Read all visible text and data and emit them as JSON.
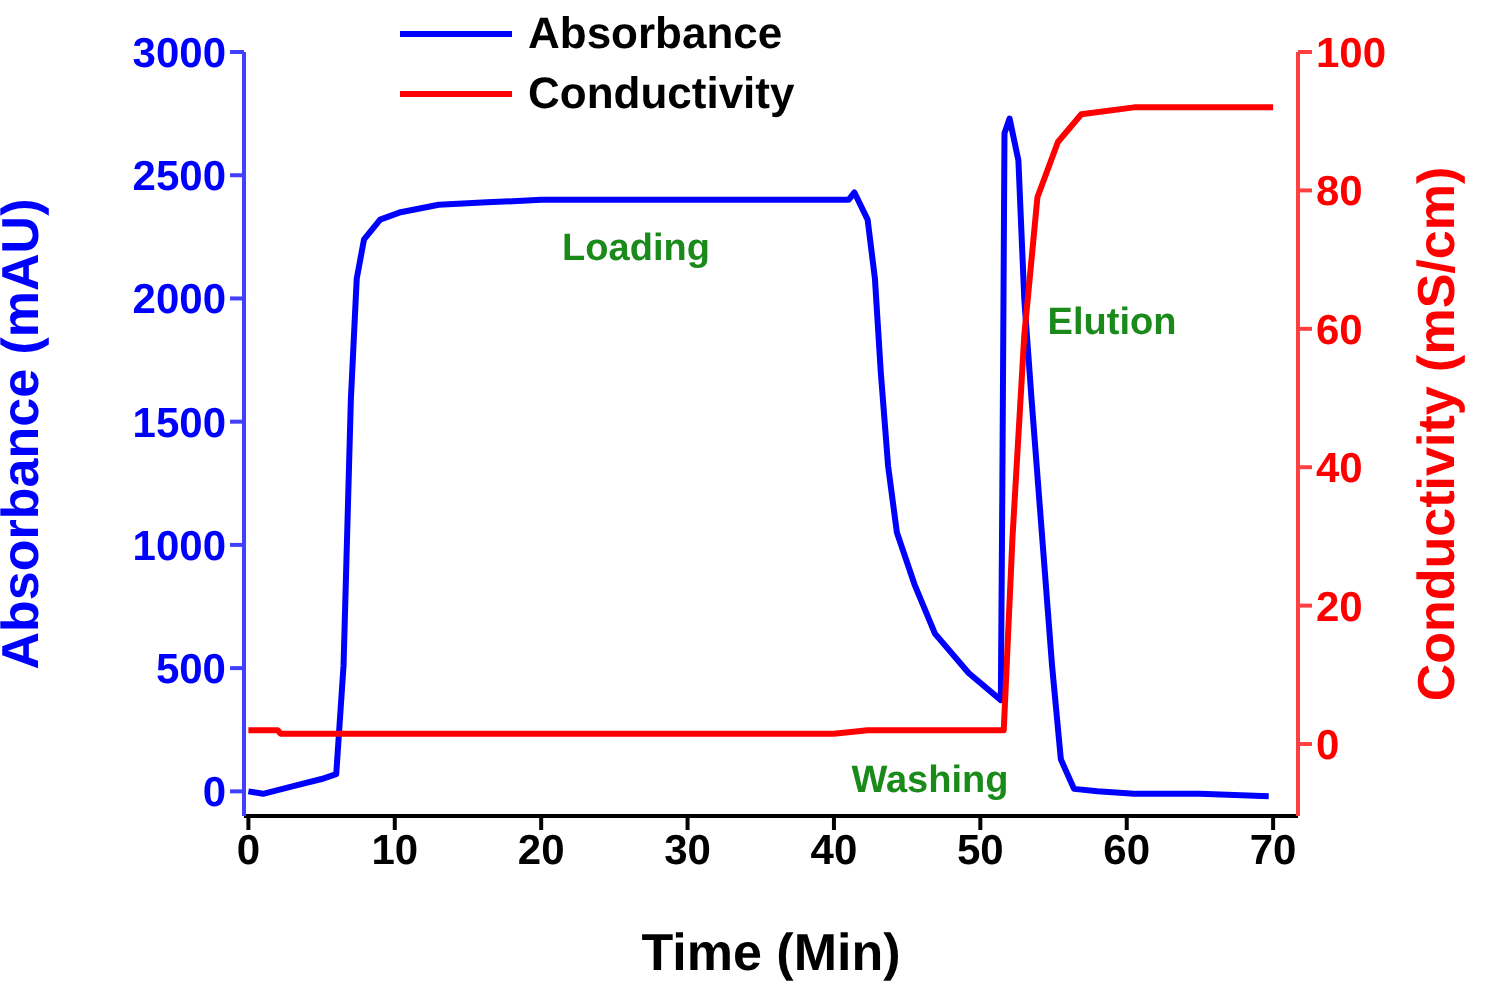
{
  "chart_data": {
    "type": "line",
    "xlabel": "Time (Min)",
    "ylabel": "Absorbance (mAU)",
    "y2label": "Conductivity (mS/cm)",
    "xlim": [
      -0.3,
      71.7
    ],
    "xticks": [
      0,
      10,
      20,
      30,
      40,
      50,
      60,
      70
    ],
    "ylim": [
      -100,
      3000
    ],
    "yticks": [
      0,
      500,
      1000,
      1500,
      2000,
      2500,
      3000
    ],
    "y2lim": [
      -10.4,
      100
    ],
    "y2ticks": [
      0,
      20,
      40,
      60,
      80,
      100
    ],
    "grid": false,
    "legend": "top",
    "marker": "none",
    "line_style": "solid",
    "annotations": [
      "Loading",
      "Elution",
      "Washing"
    ],
    "series": [
      {
        "name": "Absorbance",
        "color": "#0000ff",
        "x": [
          0,
          1,
          3,
          5,
          6,
          6.5,
          7,
          7.4,
          7.9,
          9,
          10.4,
          13,
          16.3,
          20,
          25,
          30,
          35,
          40,
          41,
          41.4,
          42.3,
          42.8,
          43.2,
          43.7,
          44.3,
          45.5,
          46.9,
          49.2,
          51.4,
          51.5,
          51.65,
          52,
          52.6,
          53,
          53.5,
          54.2,
          54.9,
          55.5,
          56.4,
          58,
          60.5,
          65,
          69.7
        ],
        "values": [
          0,
          -10,
          20,
          50,
          70,
          510,
          1590,
          2080,
          2240,
          2320,
          2350,
          2380,
          2390,
          2400,
          2400,
          2400,
          2400,
          2400,
          2400,
          2430,
          2320,
          2080,
          1700,
          1320,
          1050,
          840,
          640,
          480,
          370,
          1200,
          2670,
          2730,
          2560,
          2000,
          1590,
          1050,
          510,
          130,
          10,
          0,
          -10,
          -10,
          -20
        ]
      },
      {
        "name": "Conductivity",
        "color": "#ff0000",
        "axis": "y2",
        "x": [
          0,
          2,
          2.2,
          10,
          20,
          30,
          40,
          42.3,
          51.6,
          52.2,
          53,
          53.9,
          55.3,
          56.9,
          60.5,
          65,
          70
        ],
        "values": [
          2,
          2,
          1.5,
          1.5,
          1.5,
          1.5,
          1.5,
          2,
          2,
          30,
          59,
          79,
          87,
          91,
          92,
          92,
          92
        ]
      }
    ]
  }
}
